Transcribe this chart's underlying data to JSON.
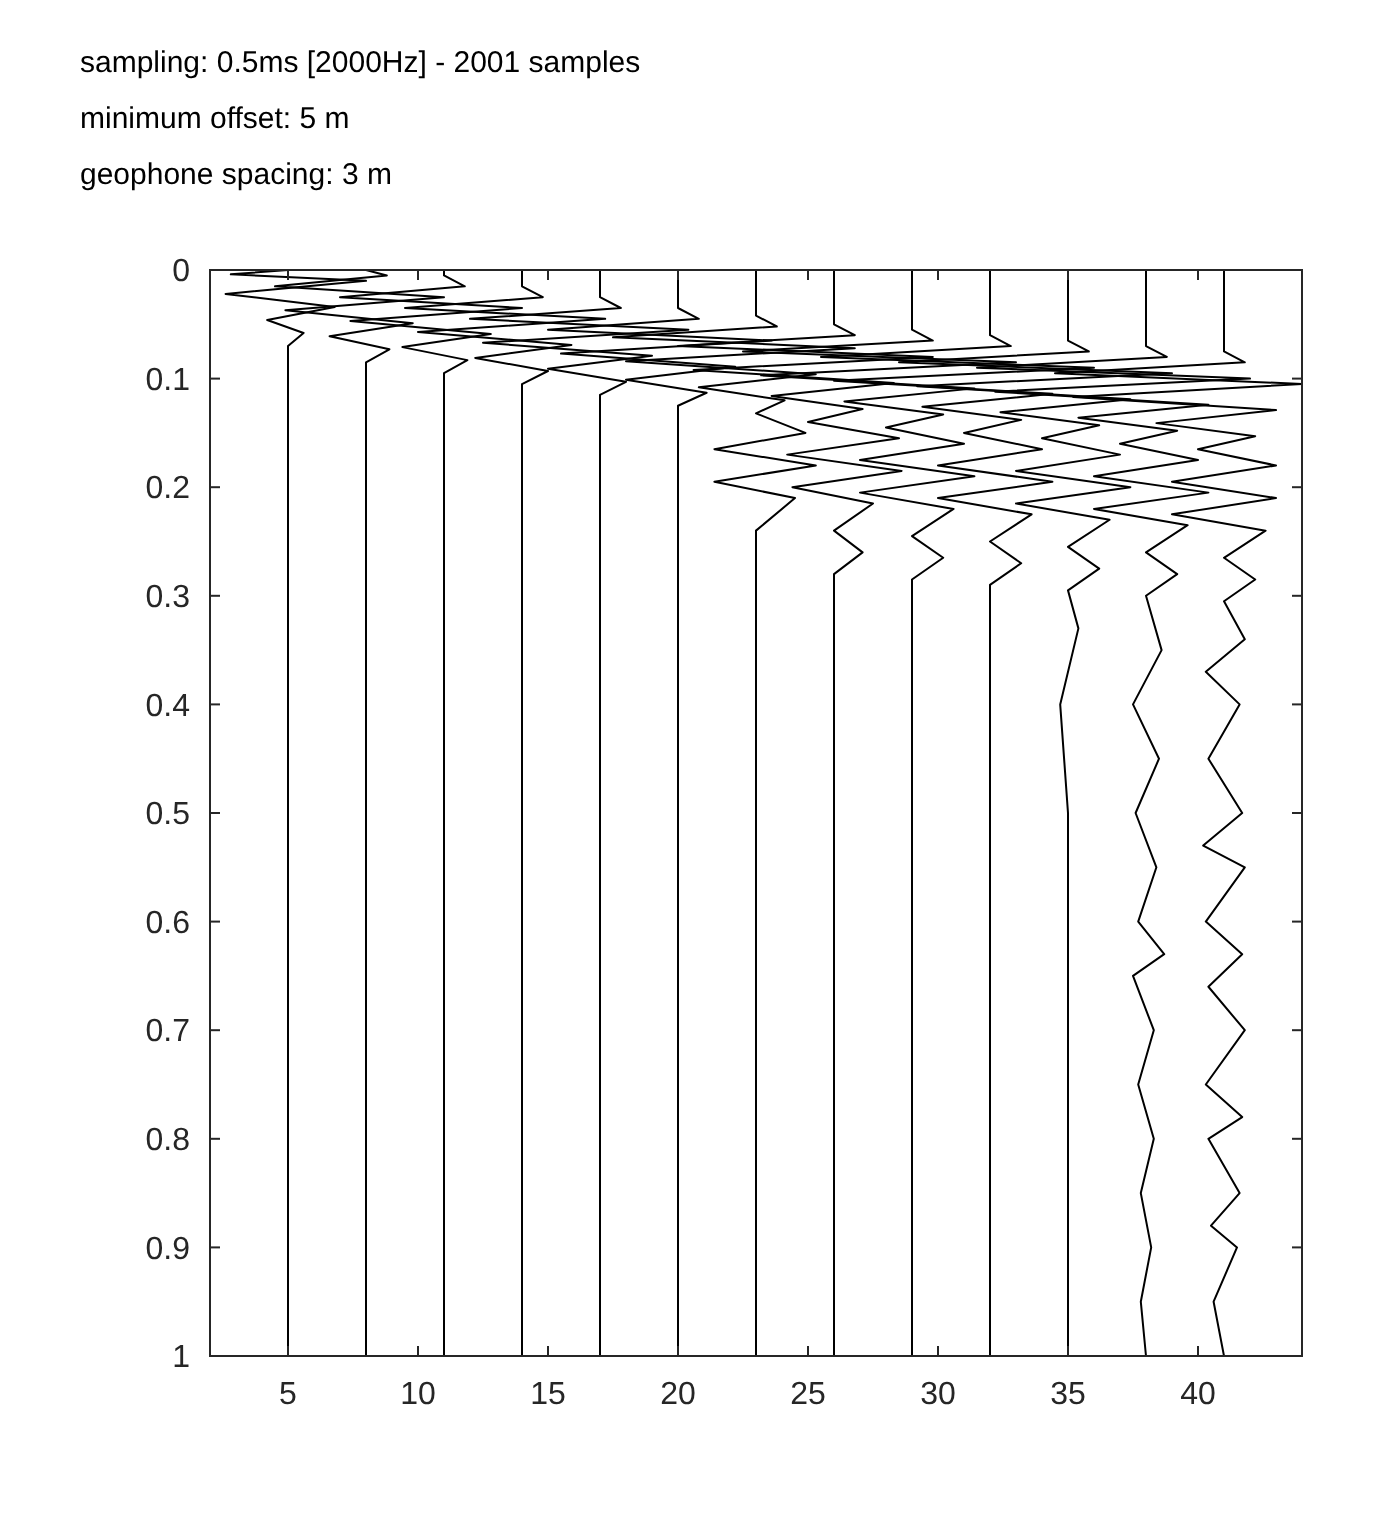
{
  "chart_data": {
    "type": "line",
    "title": "sampling: 0.5ms [2000Hz] - 2001 samples",
    "subtitle": "minimum offset: 5 m",
    "annotations": [
      "geophone spacing: 3 m"
    ],
    "xlim": [
      2,
      44
    ],
    "xticks": [
      5,
      10,
      15,
      20,
      25,
      30,
      35,
      40
    ],
    "ylim": [
      1,
      0
    ],
    "yticks": [
      0,
      0.1,
      0.2,
      0.3,
      0.4,
      0.5,
      0.6,
      0.7,
      0.8,
      0.9,
      1
    ],
    "grid": false,
    "marker": "none",
    "line_style": "solid",
    "series": [
      {
        "color": "#000000",
        "x": [
          5,
          2.8,
          8,
          2.6,
          6.8,
          4.2,
          5.6,
          5,
          5
        ],
        "values": [
          0,
          0.004,
          0.01,
          0.022,
          0.034,
          0.046,
          0.058,
          0.07,
          1
        ]
      },
      {
        "color": "#000000",
        "x": [
          8,
          8.8,
          4.5,
          11,
          4.9,
          9.8,
          6.6,
          8.9,
          8,
          8
        ],
        "values": [
          0,
          0.005,
          0.015,
          0.025,
          0.037,
          0.049,
          0.061,
          0.073,
          0.085,
          1
        ]
      },
      {
        "color": "#000000",
        "x": [
          11,
          11,
          11.8,
          7,
          14,
          7.4,
          12.8,
          9.4,
          11.9,
          11,
          11
        ],
        "values": [
          0,
          0.005,
          0.015,
          0.025,
          0.035,
          0.047,
          0.059,
          0.071,
          0.083,
          0.095,
          1
        ]
      },
      {
        "color": "#000000",
        "x": [
          14,
          14,
          14.8,
          9.5,
          17.2,
          10,
          15.9,
          12.2,
          15,
          14,
          14
        ],
        "values": [
          0,
          0.015,
          0.025,
          0.035,
          0.045,
          0.057,
          0.069,
          0.081,
          0.093,
          0.105,
          1
        ]
      },
      {
        "color": "#000000",
        "x": [
          17,
          17,
          17.8,
          12,
          20.4,
          12.5,
          19,
          15,
          18,
          17,
          17
        ],
        "values": [
          0,
          0.025,
          0.035,
          0.045,
          0.055,
          0.067,
          0.079,
          0.091,
          0.103,
          0.115,
          1
        ]
      },
      {
        "color": "#000000",
        "x": [
          20,
          20,
          20.8,
          15,
          23.6,
          15.5,
          22.2,
          18,
          21.1,
          20,
          20
        ],
        "values": [
          0,
          0.035,
          0.045,
          0.055,
          0.065,
          0.077,
          0.089,
          0.101,
          0.113,
          0.125,
          1
        ]
      },
      {
        "color": "#000000",
        "x": [
          23,
          23,
          23.8,
          17.5,
          26.8,
          18,
          25.3,
          20.8,
          24.1,
          23,
          24.9,
          21.4,
          25.3,
          21.4,
          24.5,
          23,
          23
        ],
        "values": [
          0,
          0.042,
          0.052,
          0.062,
          0.072,
          0.084,
          0.096,
          0.108,
          0.12,
          0.132,
          0.15,
          0.165,
          0.18,
          0.195,
          0.21,
          0.24,
          1
        ]
      },
      {
        "color": "#000000",
        "x": [
          26,
          26,
          26.8,
          20,
          29.8,
          20.6,
          28.3,
          23.6,
          27.1,
          25,
          28.5,
          24.2,
          28.6,
          24.4,
          27.5,
          26,
          27.1,
          26,
          26
        ],
        "values": [
          0,
          0.05,
          0.06,
          0.07,
          0.08,
          0.092,
          0.104,
          0.116,
          0.128,
          0.14,
          0.155,
          0.17,
          0.185,
          0.2,
          0.215,
          0.24,
          0.26,
          0.28,
          1
        ]
      },
      {
        "color": "#000000",
        "x": [
          29,
          29,
          29.8,
          22.5,
          33,
          23.2,
          31.4,
          26.4,
          30.2,
          28,
          31,
          27,
          31.4,
          27,
          30.6,
          29,
          30.2,
          29,
          29,
          29
        ],
        "values": [
          0,
          0.055,
          0.065,
          0.075,
          0.085,
          0.097,
          0.109,
          0.121,
          0.133,
          0.145,
          0.16,
          0.175,
          0.19,
          0.205,
          0.22,
          0.245,
          0.265,
          0.285,
          0.3,
          1
        ]
      },
      {
        "color": "#000000",
        "x": [
          32,
          32,
          32.8,
          25.5,
          36,
          26,
          34.4,
          29.4,
          33.2,
          31,
          34,
          30,
          34.4,
          30,
          33.6,
          32,
          33.2,
          32,
          32,
          32
        ],
        "values": [
          0,
          0.06,
          0.07,
          0.08,
          0.09,
          0.102,
          0.114,
          0.126,
          0.138,
          0.15,
          0.165,
          0.18,
          0.195,
          0.21,
          0.225,
          0.25,
          0.27,
          0.29,
          0.32,
          1
        ]
      },
      {
        "color": "#000000",
        "x": [
          35,
          35,
          35.8,
          28.5,
          39,
          29.2,
          37.4,
          32.4,
          36.2,
          34,
          37,
          33,
          37.4,
          33,
          36.6,
          35,
          36.2,
          35,
          35.4,
          34.7,
          35,
          35
        ],
        "values": [
          0,
          0.065,
          0.075,
          0.085,
          0.095,
          0.107,
          0.119,
          0.131,
          0.143,
          0.155,
          0.17,
          0.185,
          0.2,
          0.215,
          0.23,
          0.255,
          0.275,
          0.295,
          0.33,
          0.4,
          0.5,
          1
        ]
      },
      {
        "color": "#000000",
        "x": [
          38,
          38,
          38.8,
          31.5,
          42,
          32.2,
          40.4,
          35.4,
          39.2,
          37,
          40,
          36,
          40.4,
          36,
          39.6,
          38,
          39.2,
          38,
          38.6,
          37.5,
          38.5,
          37.6,
          38.4,
          37.7,
          38.7,
          37.5,
          38.3,
          37.7,
          38.3,
          37.8,
          38.2,
          37.8,
          38
        ],
        "values": [
          0,
          0.07,
          0.08,
          0.09,
          0.1,
          0.112,
          0.124,
          0.136,
          0.148,
          0.16,
          0.175,
          0.19,
          0.205,
          0.22,
          0.235,
          0.26,
          0.28,
          0.3,
          0.35,
          0.4,
          0.45,
          0.5,
          0.55,
          0.6,
          0.63,
          0.65,
          0.7,
          0.75,
          0.8,
          0.85,
          0.9,
          0.95,
          1
        ]
      },
      {
        "color": "#000000",
        "x": [
          41,
          41,
          41.8,
          34.5,
          44,
          35.2,
          43,
          38.4,
          42.2,
          40,
          43,
          39,
          43,
          39,
          42.6,
          41,
          42.2,
          41,
          41.8,
          40.3,
          41.6,
          40.4,
          41.7,
          40.2,
          41.8,
          40.3,
          41.7,
          40.4,
          41.8,
          40.3,
          41.7,
          40.4,
          41.6,
          40.5,
          41.5,
          40.6,
          41
        ],
        "values": [
          0,
          0.075,
          0.085,
          0.095,
          0.105,
          0.117,
          0.129,
          0.141,
          0.153,
          0.165,
          0.18,
          0.195,
          0.21,
          0.225,
          0.24,
          0.265,
          0.285,
          0.305,
          0.34,
          0.37,
          0.4,
          0.45,
          0.5,
          0.53,
          0.55,
          0.6,
          0.63,
          0.66,
          0.7,
          0.75,
          0.78,
          0.8,
          0.85,
          0.88,
          0.9,
          0.95,
          1
        ]
      }
    ]
  }
}
